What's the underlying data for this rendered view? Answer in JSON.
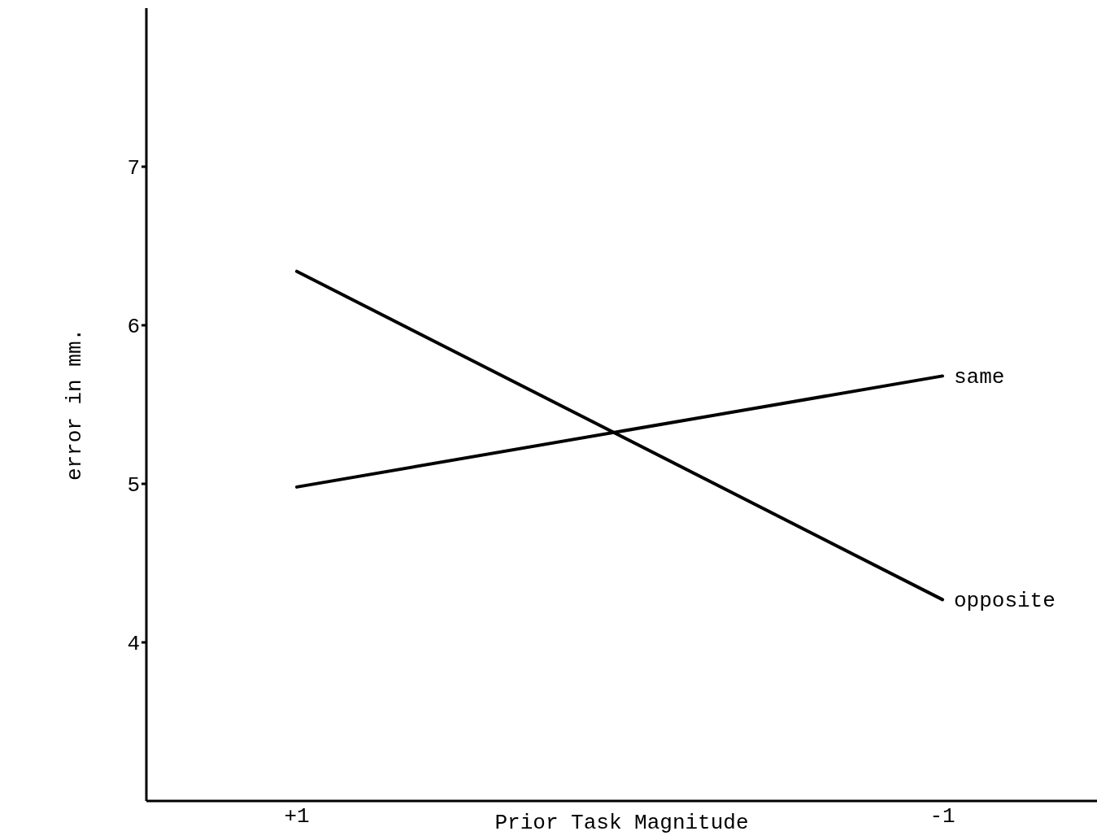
{
  "chart_data": {
    "type": "line",
    "xlabel": "Prior Task Magnitude",
    "ylabel": "error in mm.",
    "categories": [
      "+1",
      "-1"
    ],
    "series": [
      {
        "name": "same",
        "color": "#000000",
        "values": [
          4.98,
          5.68
        ]
      },
      {
        "name": "opposite",
        "color": "#000000",
        "values": [
          6.34,
          4.27
        ]
      }
    ],
    "ylim": [
      3,
      8
    ],
    "yticks": [
      4,
      5,
      6,
      7
    ],
    "grid": false,
    "legend": false,
    "marker": "none",
    "line_style": "solid"
  }
}
